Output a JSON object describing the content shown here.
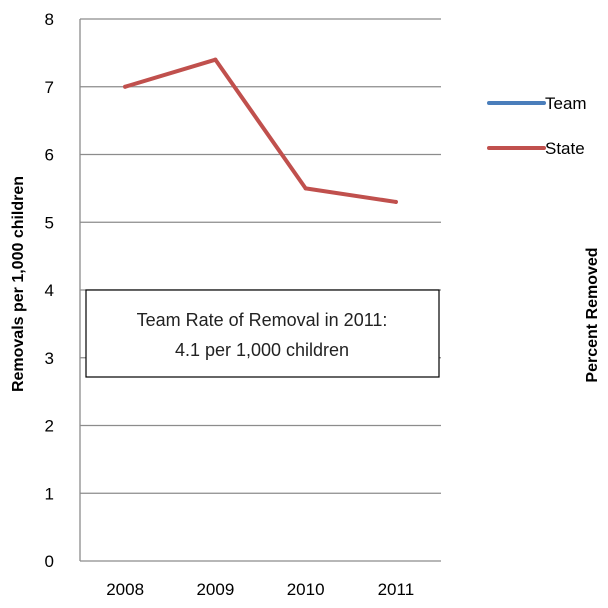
{
  "chart_data": {
    "type": "line",
    "categories": [
      "2008",
      "2009",
      "2010",
      "2011"
    ],
    "series": [
      {
        "name": "Team",
        "values": [
          null,
          null,
          null,
          null
        ],
        "color": "#4a7ebb"
      },
      {
        "name": "State",
        "values": [
          7.0,
          7.4,
          5.5,
          5.3
        ],
        "color": "#c0504d"
      }
    ],
    "ylabel": "Removals per 1,000 children",
    "y2label": "Percent Removed",
    "ylim": [
      0,
      8
    ],
    "yticks": [
      "0",
      "1",
      "2",
      "3",
      "4",
      "5",
      "6",
      "7",
      "8"
    ],
    "grid": true,
    "legend": "right",
    "annotation": {
      "line1": "Team Rate of Removal in 2011:",
      "line2": "4.1 per 1,000 children"
    }
  }
}
